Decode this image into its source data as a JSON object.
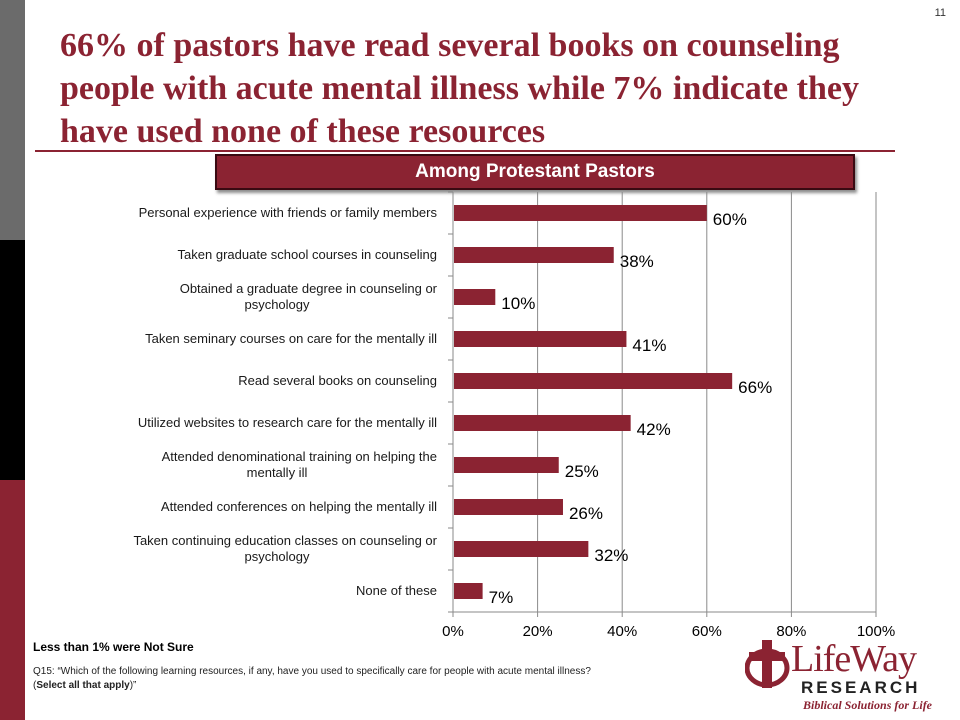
{
  "page_number": "11",
  "title": "66% of pastors have read several books on counseling people with acute mental illness while 7% indicate they have used none of these resources",
  "banner": "Among Protestant Pastors",
  "chart_data": {
    "type": "bar",
    "orientation": "horizontal",
    "categories": [
      [
        "Personal experience with friends or family members"
      ],
      [
        "Taken graduate school courses in counseling"
      ],
      [
        "Obtained a graduate degree in counseling or",
        "psychology"
      ],
      [
        "Taken seminary courses on care for the mentally ill"
      ],
      [
        "Read several books on counseling"
      ],
      [
        "Utilized websites to research care for the mentally ill"
      ],
      [
        "Attended denominational training on helping the",
        "mentally ill"
      ],
      [
        "Attended conferences on helping the mentally ill"
      ],
      [
        "Taken continuing education classes on counseling or",
        "psychology"
      ],
      [
        "None of these"
      ]
    ],
    "values": [
      60,
      38,
      10,
      41,
      66,
      42,
      25,
      26,
      32,
      7
    ],
    "value_labels": [
      "60%",
      "38%",
      "10%",
      "41%",
      "66%",
      "42%",
      "25%",
      "26%",
      "32%",
      "7%"
    ],
    "xlim": [
      0,
      100
    ],
    "x_ticks": [
      "0%",
      "20%",
      "40%",
      "60%",
      "80%",
      "100%"
    ],
    "grid": true,
    "bar_color": "#8b2332"
  },
  "footnote": "Less than 1% were Not Sure",
  "question": {
    "prefix": "Q15: “Which of the following learning resources, if any, have you used to specifically care for people with acute mental illness?",
    "bold": "Select all that apply",
    "open": "(",
    "close": ")”"
  },
  "logo": {
    "name": "LifeWay",
    "line2": "RESEARCH",
    "tagline": "Biblical Solutions for Life"
  }
}
